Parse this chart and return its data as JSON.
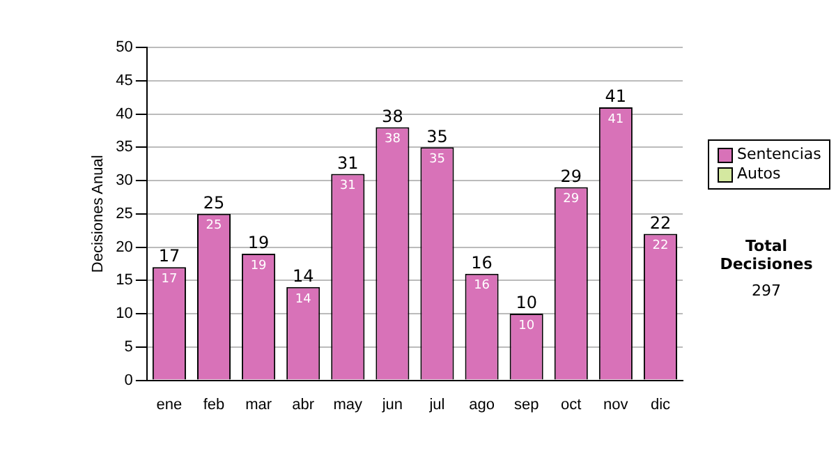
{
  "chart_data": {
    "type": "bar",
    "ylabel": "Decisiones Anual",
    "categories": [
      "ene",
      "feb",
      "mar",
      "abr",
      "may",
      "jun",
      "jul",
      "ago",
      "sep",
      "oct",
      "nov",
      "dic"
    ],
    "series": [
      {
        "name": "Sentencias",
        "color": "#d872b8",
        "values": [
          17,
          25,
          19,
          14,
          31,
          38,
          35,
          16,
          10,
          29,
          41,
          22
        ]
      },
      {
        "name": "Autos",
        "color": "#d4e8a0",
        "values": [
          null,
          null,
          null,
          null,
          null,
          null,
          null,
          null,
          null,
          null,
          null,
          null
        ]
      }
    ],
    "stacked": true,
    "data_labels": true,
    "totals": [
      "17",
      "25",
      "19",
      "14",
      "31",
      "38",
      "35",
      "16",
      "10",
      "29",
      "41",
      "22"
    ],
    "ylim": [
      0,
      50
    ],
    "yticks": [
      0,
      5,
      10,
      15,
      20,
      25,
      30,
      35,
      40,
      45,
      50
    ],
    "grid": "y",
    "legend": "right",
    "annotations": [
      "Total Decisiones",
      "297"
    ]
  }
}
